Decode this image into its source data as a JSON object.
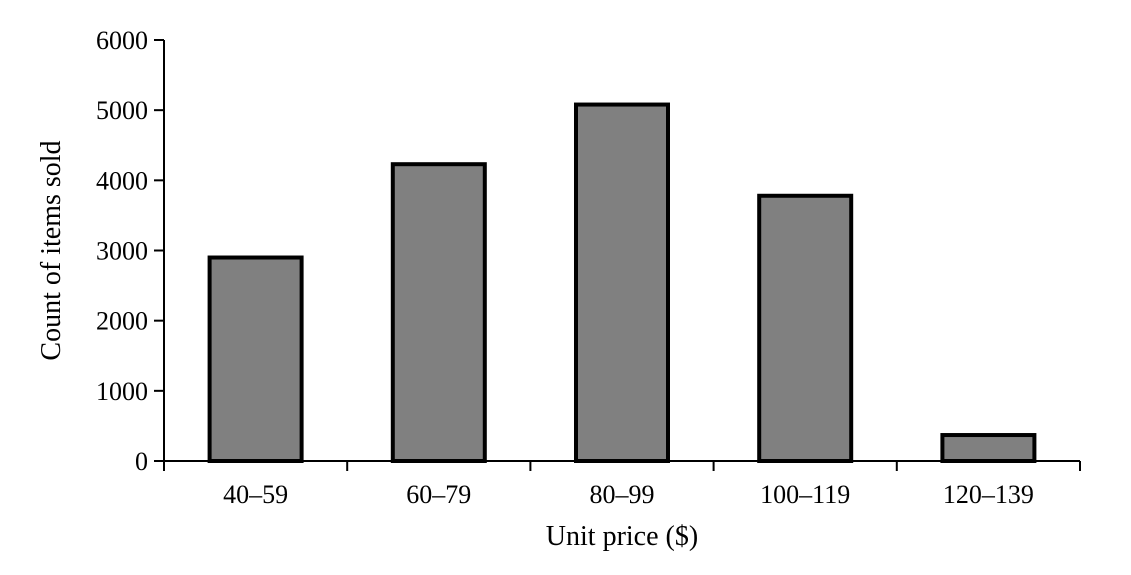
{
  "chart_data": {
    "type": "bar",
    "title": "",
    "xlabel": "Unit price ($)",
    "ylabel": "Count of items sold",
    "categories": [
      "40–59",
      "60–79",
      "80–99",
      "100–119",
      "120–139"
    ],
    "values": [
      2900,
      4230,
      5080,
      3780,
      370
    ],
    "ylim": [
      0,
      6000
    ],
    "yticks": [
      0,
      1000,
      2000,
      3000,
      4000,
      5000,
      6000
    ],
    "grid": false,
    "colors": {
      "bar": "#808080",
      "outline": "#000000"
    }
  }
}
